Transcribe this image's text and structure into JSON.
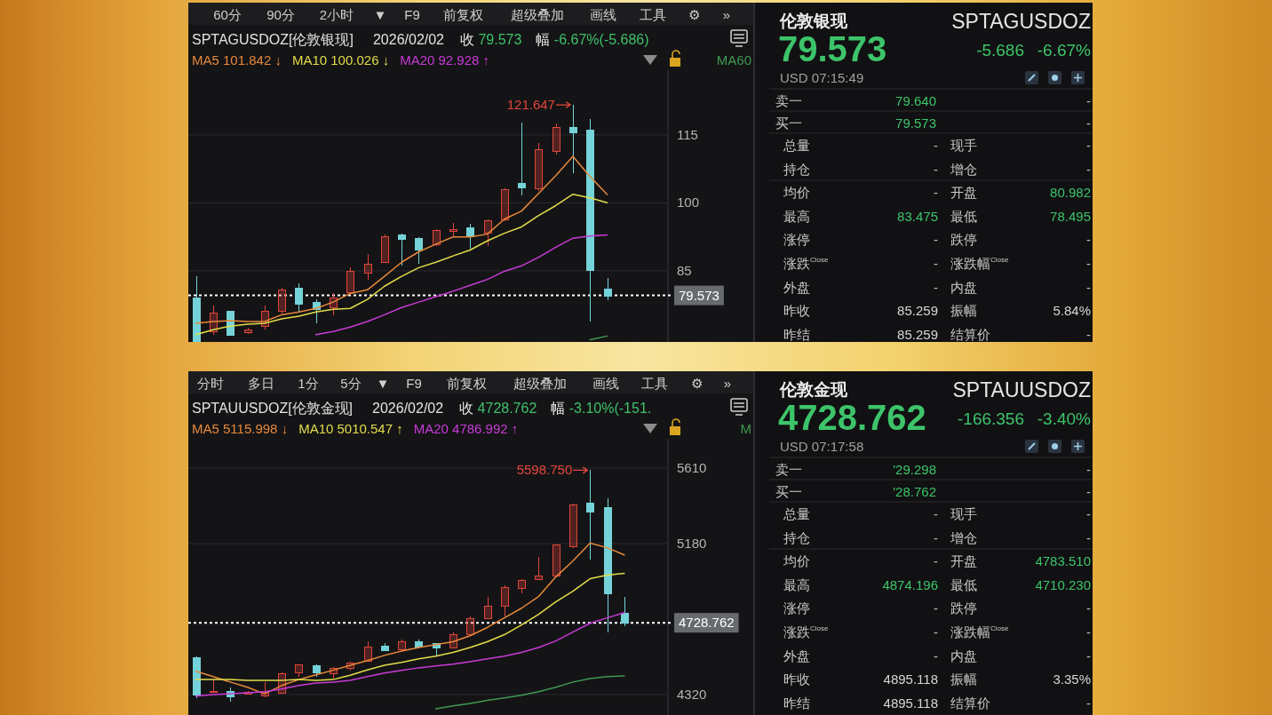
{
  "chart_data": [
    {
      "type": "other",
      "annotations": [
        "60分",
        "90分",
        "2小时",
        "▼",
        "F9",
        "前复权",
        "超级叠加",
        "画线",
        "工具",
        "⚙",
        "»"
      ]
    },
    {
      "type": "candlestick",
      "title": "SPTAGUSDOZ[伦敦银现]",
      "subtitle": "2026/02/02",
      "annotations": [
        "收 79.573",
        "幅 -6.67%(-5.686)",
        "121.647"
      ],
      "categories": [
        null,
        null,
        null,
        null,
        null,
        null,
        null,
        null,
        null,
        null,
        null,
        null,
        null,
        null,
        null,
        null,
        null,
        null,
        null,
        null,
        null,
        null,
        null,
        null,
        null
      ],
      "ohlc": [
        [
          79.1,
          83.8,
          69.4,
          69.4
        ],
        [
          71.6,
          77.3,
          70.9,
          75.7
        ],
        [
          76.1,
          76.1,
          70.9,
          70.9
        ],
        [
          71.5,
          72.5,
          71.0,
          72.0
        ],
        [
          72.8,
          77.3,
          72.0,
          76.1
        ],
        [
          76.1,
          81.3,
          75.5,
          80.8
        ],
        [
          81.3,
          82.3,
          75.9,
          77.7
        ],
        [
          78.1,
          78.7,
          73.4,
          76.6
        ],
        [
          76.9,
          80.0,
          75.2,
          79.1
        ],
        [
          80.2,
          85.7,
          79.7,
          84.9
        ],
        [
          84.5,
          88.8,
          83.1,
          86.6
        ],
        [
          86.9,
          93.1,
          86.7,
          92.7
        ],
        [
          93.1,
          93.3,
          86.1,
          92.0
        ],
        [
          92.3,
          92.5,
          86.5,
          89.6
        ],
        [
          90.8,
          94.3,
          90.4,
          94.1
        ],
        [
          93.9,
          95.5,
          92.7,
          94.3
        ],
        [
          94.5,
          95.3,
          89.8,
          92.7
        ],
        [
          93.5,
          96.4,
          90.4,
          96.1
        ],
        [
          96.3,
          103.3,
          95.9,
          103.0
        ],
        [
          104.4,
          117.7,
          101.7,
          103.4
        ],
        [
          103.3,
          113.3,
          102.7,
          111.9
        ],
        [
          111.5,
          117.5,
          110.7,
          116.7
        ],
        [
          116.8,
          121.647,
          106.6,
          115.5
        ],
        [
          116.2,
          118.5,
          73.8,
          85.259
        ],
        [
          80.982,
          83.475,
          78.495,
          79.573
        ]
      ],
      "colors": [
        "#74d3d9",
        "#e0453a",
        "#74d3d9",
        "#e0453a",
        "#e0453a",
        "#e0453a",
        "#74d3d9",
        "#74d3d9",
        "#e0453a",
        "#e0453a",
        "#e0453a",
        "#e0453a",
        "#74d3d9",
        "#74d3d9",
        "#e0453a",
        "#e0453a",
        "#74d3d9",
        "#e0453a",
        "#e0453a",
        "#74d3d9",
        "#e0453a",
        "#e0453a",
        "#74d3d9",
        "#74d3d9",
        "#74d3d9"
      ],
      "series": [
        {
          "name": "MA5 101.842 ↓",
          "type": "line",
          "color": "#e8893a",
          "values": [
            73.4,
            73.8,
            74.0,
            73.8,
            73.8,
            75.3,
            75.9,
            76.7,
            78.1,
            80.0,
            80.8,
            83.8,
            86.9,
            89.2,
            90.9,
            92.5,
            92.5,
            93.1,
            96.4,
            98.2,
            102.1,
            106.0,
            110.3,
            105.8,
            101.842
          ]
        },
        {
          "name": "MA10 100.026 ↓",
          "type": "line",
          "color": "#e3dc4a",
          "values": [
            70.9,
            72.0,
            72.8,
            73.2,
            73.4,
            74.4,
            75.0,
            75.9,
            76.5,
            76.7,
            78.7,
            81.6,
            83.8,
            85.7,
            86.9,
            88.3,
            89.6,
            91.6,
            93.3,
            94.7,
            97.2,
            99.4,
            101.9,
            101.1,
            100.026
          ]
        },
        {
          "name": "MA20 92.928 ↑",
          "type": "line",
          "color": "#c93ad8",
          "values": [
            null,
            null,
            null,
            null,
            null,
            null,
            null,
            70.9,
            71.6,
            72.6,
            73.8,
            75.3,
            76.9,
            78.1,
            79.3,
            80.5,
            81.8,
            83.1,
            84.9,
            86.1,
            88.0,
            90.2,
            92.2,
            92.7,
            92.928
          ]
        },
        {
          "name": "MA60",
          "type": "line",
          "color": "#3f9a50",
          "values": [
            null,
            null,
            null,
            null,
            null,
            null,
            null,
            null,
            null,
            null,
            null,
            null,
            null,
            null,
            null,
            null,
            null,
            null,
            null,
            null,
            null,
            null,
            null,
            69.8,
            70.6
          ]
        }
      ],
      "ylim": [
        69.3,
        129.3
      ],
      "yticks": [
        85,
        100,
        115
      ],
      "grid": "y",
      "legend": "top",
      "ref_lines": [
        {
          "axis": "y",
          "value": 79.573,
          "label": "79.573",
          "color": "#ffffff",
          "line_style": "dotted"
        }
      ]
    },
    {
      "type": "other",
      "title": "伦敦银现",
      "subtitle": "SPTAGUSDOZ",
      "annotations": [
        "79.573",
        "-5.686",
        "-6.67%",
        "USD 07:15:49",
        "卖一",
        "79.640",
        "-",
        "买一",
        "79.573",
        "-",
        "总量",
        "-",
        "现手",
        "-",
        "持仓",
        "-",
        "增仓",
        "-",
        "均价",
        "-",
        "开盘",
        "80.982",
        "最高",
        "83.475",
        "最低",
        "78.495",
        "涨停",
        "-",
        "跌停",
        "-",
        "涨跌$^{Close}$",
        "-",
        "涨跌幅$^{Close}$",
        "-",
        "外盘",
        "-",
        "内盘",
        "-",
        "昨收",
        "85.259",
        "振幅",
        "5.84%",
        "昨结",
        "85.259",
        "结算价",
        "-"
      ],
      "colors": [
        "#3dc46a",
        "#3dc46a",
        "#3dc46a",
        "#a0a0a0",
        "#c9c9c9",
        "#3dc46a",
        "#bdbdbd",
        "#c9c9c9",
        "#3dc46a",
        "#bdbdbd",
        "#c9c9c9",
        "#bdbdbd",
        "#c9c9c9",
        "#bdbdbd",
        "#c9c9c9",
        "#bdbdbd",
        "#c9c9c9",
        "#bdbdbd",
        "#c9c9c9",
        "#bdbdbd",
        "#c9c9c9",
        "#3dc46a",
        "#c9c9c9",
        "#3dc46a",
        "#c9c9c9",
        "#3dc46a",
        "#c9c9c9",
        "#bdbdbd",
        "#c9c9c9",
        "#bdbdbd",
        "#c9c9c9",
        "#bdbdbd",
        "#c9c9c9",
        "#bdbdbd",
        "#c9c9c9",
        "#bdbdbd",
        "#c9c9c9",
        "#bdbdbd",
        "#c9c9c9",
        "#d6d6d6",
        "#c9c9c9",
        "#d6d6d6",
        "#c9c9c9",
        "#d6d6d6",
        "#c9c9c9",
        "#bdbdbd"
      ]
    },
    {
      "type": "other",
      "annotations": [
        "分时",
        "多日",
        "1分",
        "5分",
        "▼",
        "F9",
        "前复权",
        "超级叠加",
        "画线",
        "工具",
        "⚙",
        "»"
      ]
    },
    {
      "type": "candlestick",
      "title": "SPTAUUSDOZ[伦敦金现]",
      "subtitle": "2026/02/02",
      "annotations": [
        "收 4728.762",
        "幅 -3.10%(-151.",
        "5598.750"
      ],
      "categories": [
        null,
        null,
        null,
        null,
        null,
        null,
        null,
        null,
        null,
        null,
        null,
        null,
        null,
        null,
        null,
        null,
        null,
        null,
        null,
        null,
        null,
        null,
        null,
        null,
        null,
        null
      ],
      "ohlc": [
        [
          4533,
          4539,
          4300,
          4320
        ],
        [
          4334,
          4401,
          4330,
          4340
        ],
        [
          4340,
          4361,
          4279,
          4310
        ],
        [
          4325,
          4340,
          4320,
          4335
        ],
        [
          4316,
          4391,
          4304,
          4336
        ],
        [
          4330,
          4446,
          4324,
          4442
        ],
        [
          4446,
          4493,
          4422,
          4491
        ],
        [
          4489,
          4493,
          4422,
          4446
        ],
        [
          4442,
          4476,
          4411,
          4472
        ],
        [
          4472,
          4507,
          4458,
          4503
        ],
        [
          4513,
          4625,
          4513,
          4594
        ],
        [
          4600,
          4615,
          4568,
          4574
        ],
        [
          4580,
          4635,
          4574,
          4621
        ],
        [
          4625,
          4631,
          4584,
          4594
        ],
        [
          4611,
          4615,
          4539,
          4588
        ],
        [
          4588,
          4676,
          4588,
          4665
        ],
        [
          4665,
          4763,
          4665,
          4757
        ],
        [
          4757,
          4879,
          4757,
          4828
        ],
        [
          4824,
          4940,
          4763,
          4934
        ],
        [
          4925,
          4980,
          4899,
          4974
        ],
        [
          4980,
          5102,
          4980,
          5000
        ],
        [
          5000,
          5177,
          4994,
          5173
        ],
        [
          5163,
          5407,
          5153,
          5401
        ],
        [
          5411,
          5598.75,
          5088,
          5362
        ],
        [
          5387,
          5437,
          4675,
          4895.118
        ],
        [
          4783.51,
          4874.196,
          4710.23,
          4728.762
        ]
      ],
      "colors": [
        "#74d3d9",
        "#e0453a",
        "#74d3d9",
        "#e0453a",
        "#e0453a",
        "#e0453a",
        "#e0453a",
        "#74d3d9",
        "#e0453a",
        "#e0453a",
        "#e0453a",
        "#74d3d9",
        "#e0453a",
        "#74d3d9",
        "#74d3d9",
        "#e0453a",
        "#e0453a",
        "#e0453a",
        "#e0453a",
        "#e0453a",
        "#e0453a",
        "#e0453a",
        "#e0453a",
        "#74d3d9",
        "#74d3d9",
        "#74d3d9"
      ],
      "series": [
        {
          "name": "MA5 5115.998 ↓",
          "type": "line",
          "color": "#e8893a",
          "values": [
            4452,
            4422,
            4391,
            4361,
            4324,
            4371,
            4405,
            4432,
            4458,
            4487,
            4513,
            4543,
            4568,
            4588,
            4604,
            4621,
            4655,
            4702,
            4757,
            4812,
            4879,
            4990,
            5082,
            5183,
            5157,
            5115.998
          ]
        },
        {
          "name": "MA10 5010.547 ↑",
          "type": "line",
          "color": "#e3dc4a",
          "values": [
            4405,
            4405,
            4405,
            4401,
            4401,
            4401,
            4405,
            4401,
            4405,
            4430,
            4460,
            4487,
            4503,
            4523,
            4539,
            4560,
            4588,
            4621,
            4661,
            4716,
            4777,
            4848,
            4909,
            4980,
            5001,
            5010.547
          ]
        },
        {
          "name": "MA20 4786.992 ↑",
          "type": "line",
          "color": "#c93ad8",
          "values": [
            4310,
            4320,
            4324,
            4330,
            4336,
            4351,
            4371,
            4385,
            4391,
            4401,
            4422,
            4442,
            4458,
            4472,
            4483,
            4493,
            4507,
            4523,
            4539,
            4560,
            4588,
            4625,
            4676,
            4726,
            4757,
            4786.992
          ]
        },
        {
          "name": "M",
          "type": "line",
          "color": "#3f9a50",
          "values": [
            null,
            null,
            null,
            null,
            null,
            null,
            null,
            null,
            null,
            null,
            null,
            null,
            null,
            null,
            4239,
            4255,
            4269,
            4286,
            4300,
            4316,
            4336,
            4361,
            4391,
            4411,
            4422,
            4426
          ]
        }
      ],
      "ylim": [
        4203,
        5778
      ],
      "yticks": [
        4320,
        5180,
        5610
      ],
      "grid": "y",
      "legend": "top",
      "ref_lines": [
        {
          "axis": "y",
          "value": 4728.762,
          "label": "4728.762",
          "color": "#ffffff",
          "line_style": "dotted"
        }
      ]
    },
    {
      "type": "other",
      "title": "伦敦金现",
      "subtitle": "SPTAUUSDOZ",
      "annotations": [
        "4728.762",
        "-166.356",
        "-3.40%",
        "USD 07:17:58",
        "卖一",
        "'29.298",
        "-",
        "买一",
        "'28.762",
        "-",
        "总量",
        "-",
        "现手",
        "-",
        "持仓",
        "-",
        "增仓",
        "-",
        "均价",
        "-",
        "开盘",
        "4783.510",
        "最高",
        "4874.196",
        "最低",
        "4710.230",
        "涨停",
        "-",
        "跌停",
        "-",
        "涨跌$^{Close}$",
        "-",
        "涨跌幅$^{Close}$",
        "-",
        "外盘",
        "-",
        "内盘",
        "-",
        "昨收",
        "4895.118",
        "振幅",
        "3.35%",
        "昨结",
        "4895.118",
        "结算价",
        "-"
      ],
      "colors": [
        "#3dc46a",
        "#3dc46a",
        "#3dc46a",
        "#a0a0a0",
        "#c9c9c9",
        "#3dc46a",
        "#bdbdbd",
        "#c9c9c9",
        "#3dc46a",
        "#bdbdbd",
        "#c9c9c9",
        "#bdbdbd",
        "#c9c9c9",
        "#bdbdbd",
        "#c9c9c9",
        "#bdbdbd",
        "#c9c9c9",
        "#bdbdbd",
        "#c9c9c9",
        "#bdbdbd",
        "#c9c9c9",
        "#3dc46a",
        "#c9c9c9",
        "#3dc46a",
        "#c9c9c9",
        "#3dc46a",
        "#c9c9c9",
        "#bdbdbd",
        "#c9c9c9",
        "#bdbdbd",
        "#c9c9c9",
        "#bdbdbd",
        "#c9c9c9",
        "#bdbdbd",
        "#c9c9c9",
        "#bdbdbd",
        "#c9c9c9",
        "#bdbdbd",
        "#c9c9c9",
        "#d6d6d6",
        "#c9c9c9",
        "#d6d6d6",
        "#c9c9c9",
        "#d6d6d6",
        "#c9c9c9",
        "#bdbdbd"
      ]
    }
  ]
}
